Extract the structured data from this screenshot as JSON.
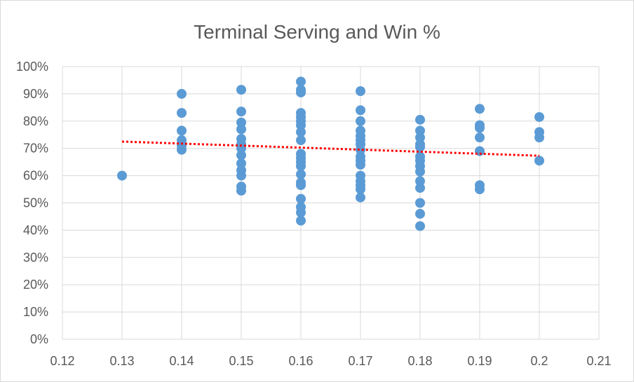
{
  "chart_data": {
    "type": "scatter",
    "title": "Terminal Serving and Win %",
    "xlabel": "",
    "ylabel": "",
    "xlim": [
      0.12,
      0.21
    ],
    "ylim": [
      0,
      1
    ],
    "x_ticks": [
      "0.12",
      "0.13",
      "0.14",
      "0.15",
      "0.16",
      "0.17",
      "0.18",
      "0.19",
      "0.2",
      "0.21"
    ],
    "y_ticks": [
      "0%",
      "10%",
      "20%",
      "30%",
      "40%",
      "50%",
      "60%",
      "70%",
      "80%",
      "90%",
      "100%"
    ],
    "grid": true,
    "legend": "none",
    "colors": {
      "points": "#5b9bd5",
      "trendline": "#ff0000",
      "grid": "#d9d9d9",
      "text": "#595959"
    },
    "series": [
      {
        "points": [
          [
            0.13,
            0.6
          ],
          [
            0.14,
            0.9
          ],
          [
            0.14,
            0.83
          ],
          [
            0.14,
            0.765
          ],
          [
            0.14,
            0.73
          ],
          [
            0.14,
            0.71
          ],
          [
            0.14,
            0.695
          ],
          [
            0.15,
            0.915
          ],
          [
            0.15,
            0.835
          ],
          [
            0.15,
            0.795
          ],
          [
            0.15,
            0.77
          ],
          [
            0.15,
            0.735
          ],
          [
            0.15,
            0.715
          ],
          [
            0.15,
            0.7
          ],
          [
            0.15,
            0.675
          ],
          [
            0.15,
            0.645
          ],
          [
            0.15,
            0.62
          ],
          [
            0.15,
            0.6
          ],
          [
            0.15,
            0.56
          ],
          [
            0.15,
            0.545
          ],
          [
            0.16,
            0.945
          ],
          [
            0.16,
            0.915
          ],
          [
            0.16,
            0.905
          ],
          [
            0.16,
            0.83
          ],
          [
            0.16,
            0.815
          ],
          [
            0.16,
            0.8
          ],
          [
            0.16,
            0.785
          ],
          [
            0.16,
            0.76
          ],
          [
            0.16,
            0.73
          ],
          [
            0.16,
            0.68
          ],
          [
            0.16,
            0.665
          ],
          [
            0.16,
            0.65
          ],
          [
            0.16,
            0.635
          ],
          [
            0.16,
            0.605
          ],
          [
            0.16,
            0.575
          ],
          [
            0.16,
            0.565
          ],
          [
            0.16,
            0.515
          ],
          [
            0.16,
            0.485
          ],
          [
            0.16,
            0.465
          ],
          [
            0.16,
            0.435
          ],
          [
            0.17,
            0.91
          ],
          [
            0.17,
            0.84
          ],
          [
            0.17,
            0.8
          ],
          [
            0.17,
            0.765
          ],
          [
            0.17,
            0.745
          ],
          [
            0.17,
            0.73
          ],
          [
            0.17,
            0.715
          ],
          [
            0.17,
            0.695
          ],
          [
            0.17,
            0.67
          ],
          [
            0.17,
            0.655
          ],
          [
            0.17,
            0.64
          ],
          [
            0.17,
            0.6
          ],
          [
            0.17,
            0.58
          ],
          [
            0.17,
            0.565
          ],
          [
            0.17,
            0.55
          ],
          [
            0.17,
            0.52
          ],
          [
            0.18,
            0.805
          ],
          [
            0.18,
            0.765
          ],
          [
            0.18,
            0.74
          ],
          [
            0.18,
            0.715
          ],
          [
            0.18,
            0.705
          ],
          [
            0.18,
            0.67
          ],
          [
            0.18,
            0.655
          ],
          [
            0.18,
            0.635
          ],
          [
            0.18,
            0.615
          ],
          [
            0.18,
            0.58
          ],
          [
            0.18,
            0.555
          ],
          [
            0.18,
            0.5
          ],
          [
            0.18,
            0.46
          ],
          [
            0.18,
            0.415
          ],
          [
            0.19,
            0.845
          ],
          [
            0.19,
            0.785
          ],
          [
            0.19,
            0.775
          ],
          [
            0.19,
            0.74
          ],
          [
            0.19,
            0.69
          ],
          [
            0.19,
            0.565
          ],
          [
            0.19,
            0.55
          ],
          [
            0.2,
            0.815
          ],
          [
            0.2,
            0.76
          ],
          [
            0.2,
            0.74
          ],
          [
            0.2,
            0.655
          ]
        ]
      }
    ],
    "trendline": {
      "type": "linear",
      "from": [
        0.13,
        0.725
      ],
      "to": [
        0.2,
        0.673
      ],
      "style": "dotted"
    }
  }
}
